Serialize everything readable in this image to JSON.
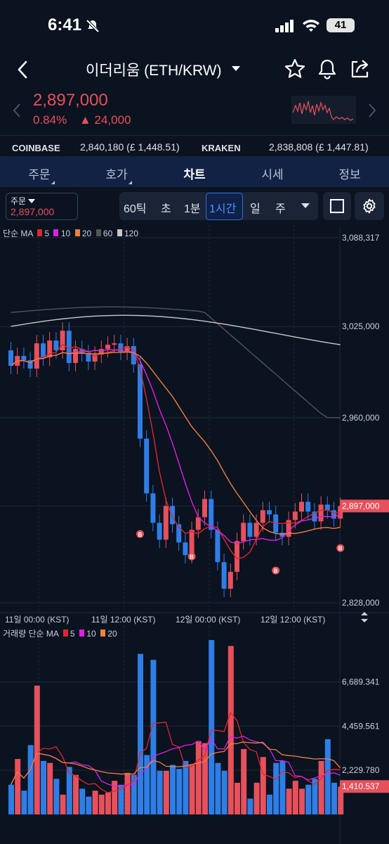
{
  "status": {
    "time": "6:41",
    "battery": "41"
  },
  "header": {
    "pair": "이더리움 (ETH/KRW)"
  },
  "price": {
    "current": "2,897,000",
    "change_pct": "0.84%",
    "change_abs": "▲ 24,000"
  },
  "exchanges": [
    {
      "name": "COINBASE",
      "value": "2,840,180 (£ 1,448.51)"
    },
    {
      "name": "KRAKEN",
      "value": "2,838,808 (£ 1,447.81)"
    }
  ],
  "tabs": [
    {
      "label": "주문"
    },
    {
      "label": "호가"
    },
    {
      "label": "차트"
    },
    {
      "label": "시세"
    },
    {
      "label": "정보"
    }
  ],
  "order_box": {
    "label": "주문",
    "price": "2,897,000"
  },
  "intervals": [
    "60틱",
    "초",
    "1분",
    "1시간",
    "일",
    "주"
  ],
  "colors": {
    "up": "#e8505b",
    "down": "#2f7ee6",
    "ma5": "#e0262e",
    "ma10": "#e020e0",
    "ma20": "#f0803c",
    "ma60": "#555555",
    "ma120": "#c8c8c8"
  },
  "chart_data": [
    {
      "type": "candlestick",
      "legend": [
        "단순 MA",
        "5",
        "10",
        "20",
        "60",
        "120"
      ],
      "y_ticks": [
        "3,088,317",
        "3,025,000",
        "2,960,000",
        "2,828,000"
      ],
      "price_label": "2,897,000",
      "x_ticks": [
        "11일 00:00 (KST)",
        "11일 12:00 (KST)",
        "12일 00:00 (KST)",
        "12일 12:00 (KST)"
      ],
      "ylim": [
        2828000,
        3088317
      ],
      "candles": [
        {
          "o": 3008000,
          "c": 2997000
        },
        {
          "o": 2997000,
          "c": 3004000
        },
        {
          "o": 3004000,
          "c": 3001000
        },
        {
          "o": 3001000,
          "c": 2995000
        },
        {
          "o": 2995000,
          "c": 3013000
        },
        {
          "o": 3013000,
          "c": 3003000
        },
        {
          "o": 3003000,
          "c": 3015000
        },
        {
          "o": 3015000,
          "c": 3008000
        },
        {
          "o": 3008000,
          "c": 3022000
        },
        {
          "o": 3022000,
          "c": 2999000
        },
        {
          "o": 2999000,
          "c": 3009000
        },
        {
          "o": 3009000,
          "c": 3006000
        },
        {
          "o": 3006000,
          "c": 3000000
        },
        {
          "o": 3000000,
          "c": 3005000
        },
        {
          "o": 3005000,
          "c": 3009000
        },
        {
          "o": 3009000,
          "c": 3012000
        },
        {
          "o": 3012000,
          "c": 3013000
        },
        {
          "o": 3013000,
          "c": 3007000
        },
        {
          "o": 3007000,
          "c": 3011000
        },
        {
          "o": 3011000,
          "c": 2998000
        },
        {
          "o": 2998000,
          "c": 2945000
        },
        {
          "o": 2945000,
          "c": 2906000
        },
        {
          "o": 2906000,
          "c": 2885000
        },
        {
          "o": 2885000,
          "c": 2873000
        },
        {
          "o": 2873000,
          "c": 2897000
        },
        {
          "o": 2897000,
          "c": 2884000
        },
        {
          "o": 2884000,
          "c": 2871000
        },
        {
          "o": 2871000,
          "c": 2862000
        },
        {
          "o": 2862000,
          "c": 2880000
        },
        {
          "o": 2880000,
          "c": 2889000
        },
        {
          "o": 2889000,
          "c": 2902000
        },
        {
          "o": 2902000,
          "c": 2880000
        },
        {
          "o": 2880000,
          "c": 2857000
        },
        {
          "o": 2857000,
          "c": 2838000
        },
        {
          "o": 2838000,
          "c": 2850000
        },
        {
          "o": 2850000,
          "c": 2872000
        },
        {
          "o": 2872000,
          "c": 2885000
        },
        {
          "o": 2885000,
          "c": 2875000
        },
        {
          "o": 2875000,
          "c": 2885000
        },
        {
          "o": 2885000,
          "c": 2894000
        },
        {
          "o": 2894000,
          "c": 2891000
        },
        {
          "o": 2891000,
          "c": 2878000
        },
        {
          "o": 2878000,
          "c": 2875000
        },
        {
          "o": 2875000,
          "c": 2887000
        },
        {
          "o": 2887000,
          "c": 2893000
        },
        {
          "o": 2893000,
          "c": 2900000
        },
        {
          "o": 2900000,
          "c": 2893000
        },
        {
          "o": 2893000,
          "c": 2886000
        },
        {
          "o": 2886000,
          "c": 2898000
        },
        {
          "o": 2898000,
          "c": 2894000
        },
        {
          "o": 2894000,
          "c": 2888000
        },
        {
          "o": 2888000,
          "c": 2897000
        }
      ]
    },
    {
      "type": "bar",
      "legend": [
        "거래량 단순 MA",
        "5",
        "10",
        "20"
      ],
      "y_ticks": [
        "6,689.341",
        "4,459.561",
        "2,229.780"
      ],
      "volume_label": "1,410.537",
      "ylim": [
        0,
        8800
      ],
      "values": [
        1500,
        2800,
        1200,
        3500,
        6500,
        2700,
        2600,
        1800,
        1000,
        2400,
        2000,
        1300,
        900,
        1200,
        1000,
        1100,
        1700,
        1500,
        2100,
        2000,
        8100,
        3000,
        7800,
        2200,
        2200,
        2500,
        2300,
        2700,
        2500,
        3700,
        3600,
        8800,
        2600,
        2200,
        8500,
        1600,
        3300,
        800,
        1600,
        2900,
        1000,
        2600,
        2700,
        1300,
        1700,
        1300,
        1500,
        1800,
        2700,
        3800,
        1600,
        1400
      ]
    }
  ]
}
